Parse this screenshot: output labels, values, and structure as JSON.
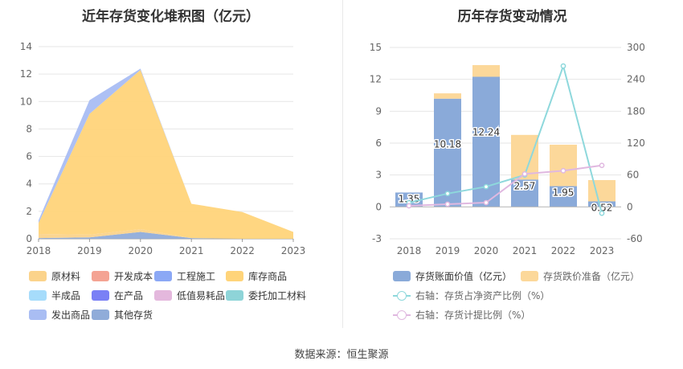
{
  "titles": {
    "left": "近年存货变化堆积图（亿元）",
    "right": "历年存货变动情况"
  },
  "source": "数据来源：恒生聚源",
  "chart_data": [
    {
      "type": "area",
      "title": "近年存货变化堆积图（亿元）",
      "x": [
        "2018",
        "2019",
        "2020",
        "2021",
        "2022",
        "2023"
      ],
      "ylim": [
        0,
        14
      ],
      "yticks": [
        0,
        2,
        4,
        6,
        8,
        10,
        12,
        14
      ],
      "legend_position": "bottom",
      "series": [
        {
          "name": "原材料",
          "color": "#fbd38b",
          "values": [
            0.3,
            0.2,
            0.2,
            0.0,
            0.0,
            0.0
          ]
        },
        {
          "name": "开发成本",
          "color": "#f4a393",
          "values": [
            0,
            0,
            0,
            0,
            0,
            0
          ]
        },
        {
          "name": "工程施工",
          "color": "#8ba8f5",
          "values": [
            0,
            0,
            0,
            0,
            0,
            0
          ]
        },
        {
          "name": "库存商品",
          "color": "#ffd47a",
          "values": [
            0.8,
            8.8,
            11.6,
            2.5,
            1.95,
            0.5
          ]
        },
        {
          "name": "半成品",
          "color": "#a6dcfb",
          "values": [
            0,
            0,
            0,
            0,
            0,
            0
          ]
        },
        {
          "name": "在产品",
          "color": "#7a80f5",
          "values": [
            0,
            0,
            0,
            0,
            0,
            0
          ]
        },
        {
          "name": "低值易耗品",
          "color": "#e4b8dd",
          "values": [
            0,
            0,
            0,
            0,
            0,
            0
          ]
        },
        {
          "name": "委托加工材料",
          "color": "#8ed4d8",
          "values": [
            0,
            0,
            0,
            0,
            0,
            0
          ]
        },
        {
          "name": "发出商品",
          "color": "#a9bdf3",
          "values": [
            0.2,
            1.0,
            0.1,
            0.0,
            0.0,
            0.0
          ]
        },
        {
          "name": "其他存货",
          "color": "#90acd9",
          "values": [
            0.05,
            0.1,
            0.5,
            0.05,
            0.0,
            0.0
          ]
        }
      ]
    },
    {
      "type": "bar",
      "title": "历年存货变动情况",
      "categories": [
        "2018",
        "2019",
        "2020",
        "2021",
        "2022",
        "2023"
      ],
      "ylim": [
        -3,
        15
      ],
      "yticks": [
        -3,
        0,
        3,
        6,
        9,
        12,
        15
      ],
      "y2lim": [
        -60,
        300
      ],
      "y2ticks": [
        -60,
        0,
        60,
        120,
        180,
        240,
        300
      ],
      "legend_position": "bottom",
      "series": [
        {
          "name": "存货账面价值（亿元）",
          "color": "#8aaad9",
          "values": [
            1.35,
            10.18,
            12.24,
            2.57,
            1.95,
            0.52
          ],
          "labels": [
            "1.35",
            "10.18",
            "12.24",
            "2.57",
            "1.95",
            "0.52"
          ]
        },
        {
          "name": "存货跌价准备（亿元）",
          "color": "#fcd89a",
          "values": [
            0,
            0.5,
            1.1,
            4.2,
            3.9,
            2.0
          ]
        },
        {
          "name": "右轴：存货占净资产比例（%）",
          "color": "#8ed8dc",
          "axis": "right",
          "values": [
            8,
            25,
            38,
            60,
            265,
            -12
          ]
        },
        {
          "name": "右轴：存货计提比例（%）",
          "color": "#e0b8e0",
          "axis": "right",
          "values": [
            2,
            5,
            8,
            62,
            68,
            78
          ]
        }
      ]
    }
  ]
}
